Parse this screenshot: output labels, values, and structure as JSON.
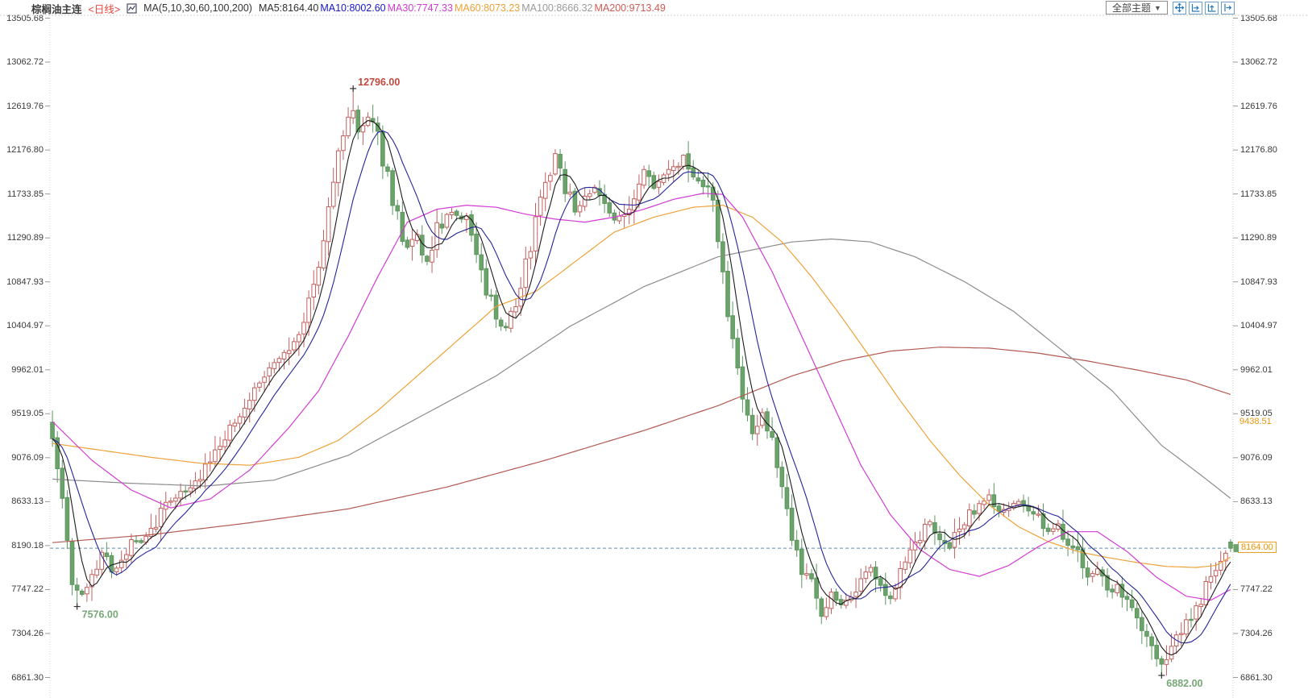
{
  "header": {
    "symbol": "棕榈油主连",
    "period": "<日线>",
    "ma_label": "MA(5,10,30,60,100,200)",
    "ma_values": [
      {
        "text": "MA5:8164.40",
        "color": "#2e2e2e"
      },
      {
        "text": "MA10:8002.60",
        "color": "#1717c8"
      },
      {
        "text": "MA30:7747.33",
        "color": "#d23cd2"
      },
      {
        "text": "MA60:8073.23",
        "color": "#eda23a"
      },
      {
        "text": "MA100:8666.32",
        "color": "#9a9a9a"
      },
      {
        "text": "MA200:9713.49",
        "color": "#d05a52"
      }
    ]
  },
  "toolbar": {
    "theme_label": "全部主题",
    "caret": "▼",
    "icons": [
      "pan-icon",
      "zoom-x-axis-icon",
      "zoom-y-axis-icon",
      "reset-view-icon"
    ]
  },
  "axis": {
    "price_tags": [
      {
        "text": "9438.51",
        "price": 9438.51,
        "boxed": false
      },
      {
        "text": "8164.00",
        "price": 8164.0,
        "boxed": true
      }
    ]
  },
  "chart_data": {
    "type": "candlestick",
    "title": "棕榈油主连 日线",
    "n_candles": 240,
    "price_at_top": 13505.68,
    "price_at_bottom": 6861.3,
    "y_ticks": [
      "13505.68",
      "13062.72",
      "12619.76",
      "12176.80",
      "11733.85",
      "11290.89",
      "10847.93",
      "10404.97",
      "9962.01",
      "9519.05",
      "9076.09",
      "8633.13",
      "8190.18",
      "7747.22",
      "7304.26",
      "6861.30"
    ],
    "close_keypoints": [
      [
        0,
        9300
      ],
      [
        1,
        8950
      ],
      [
        3,
        8250
      ],
      [
        4,
        7750
      ],
      [
        6,
        7680
      ],
      [
        8,
        7850
      ],
      [
        10,
        8150
      ],
      [
        12,
        7950
      ],
      [
        14,
        8000
      ],
      [
        16,
        8250
      ],
      [
        18,
        8200
      ],
      [
        20,
        8350
      ],
      [
        23,
        8600
      ],
      [
        26,
        8700
      ],
      [
        29,
        8850
      ],
      [
        32,
        9050
      ],
      [
        35,
        9300
      ],
      [
        38,
        9550
      ],
      [
        41,
        9800
      ],
      [
        44,
        9950
      ],
      [
        47,
        10100
      ],
      [
        50,
        10350
      ],
      [
        53,
        10800
      ],
      [
        55,
        11300
      ],
      [
        57,
        11900
      ],
      [
        59,
        12300
      ],
      [
        61,
        12550
      ],
      [
        62,
        12350
      ],
      [
        64,
        12500
      ],
      [
        66,
        12300
      ],
      [
        68,
        11900
      ],
      [
        70,
        11500
      ],
      [
        72,
        11150
      ],
      [
        74,
        11350
      ],
      [
        76,
        11050
      ],
      [
        78,
        11400
      ],
      [
        80,
        11550
      ],
      [
        82,
        11500
      ],
      [
        84,
        11450
      ],
      [
        86,
        11100
      ],
      [
        88,
        10750
      ],
      [
        90,
        10500
      ],
      [
        92,
        10350
      ],
      [
        94,
        10650
      ],
      [
        96,
        11000
      ],
      [
        98,
        11450
      ],
      [
        100,
        11850
      ],
      [
        102,
        12150
      ],
      [
        104,
        11800
      ],
      [
        106,
        11580
      ],
      [
        108,
        11700
      ],
      [
        110,
        11800
      ],
      [
        112,
        11650
      ],
      [
        114,
        11480
      ],
      [
        116,
        11550
      ],
      [
        118,
        11750
      ],
      [
        120,
        11950
      ],
      [
        122,
        11800
      ],
      [
        124,
        11880
      ],
      [
        126,
        12000
      ],
      [
        128,
        12150
      ],
      [
        130,
        11950
      ],
      [
        132,
        11880
      ],
      [
        134,
        11600
      ],
      [
        136,
        10900
      ],
      [
        138,
        10200
      ],
      [
        140,
        9700
      ],
      [
        142,
        9350
      ],
      [
        144,
        9550
      ],
      [
        146,
        9250
      ],
      [
        148,
        8800
      ],
      [
        150,
        8250
      ],
      [
        152,
        7950
      ],
      [
        154,
        7850
      ],
      [
        156,
        7500
      ],
      [
        158,
        7700
      ],
      [
        160,
        7580
      ],
      [
        162,
        7650
      ],
      [
        164,
        7900
      ],
      [
        166,
        7950
      ],
      [
        168,
        7780
      ],
      [
        170,
        7650
      ],
      [
        172,
        7900
      ],
      [
        174,
        8100
      ],
      [
        176,
        8300
      ],
      [
        178,
        8420
      ],
      [
        180,
        8300
      ],
      [
        182,
        8180
      ],
      [
        184,
        8350
      ],
      [
        186,
        8500
      ],
      [
        188,
        8620
      ],
      [
        190,
        8680
      ],
      [
        192,
        8520
      ],
      [
        194,
        8580
      ],
      [
        196,
        8620
      ],
      [
        198,
        8550
      ],
      [
        200,
        8460
      ],
      [
        202,
        8320
      ],
      [
        204,
        8380
      ],
      [
        206,
        8220
      ],
      [
        208,
        8120
      ],
      [
        210,
        7880
      ],
      [
        212,
        7950
      ],
      [
        214,
        7720
      ],
      [
        216,
        7780
      ],
      [
        218,
        7620
      ],
      [
        220,
        7500
      ],
      [
        222,
        7250
      ],
      [
        224,
        7080
      ],
      [
        225,
        6990
      ],
      [
        227,
        7150
      ],
      [
        229,
        7350
      ],
      [
        231,
        7480
      ],
      [
        233,
        7650
      ],
      [
        235,
        7900
      ],
      [
        237,
        8050
      ],
      [
        239,
        8164
      ]
    ],
    "computed_ma": [
      {
        "name": "MA5",
        "window": 5,
        "color": "#1c1c1c",
        "last_value": 8164.4
      },
      {
        "name": "MA10",
        "window": 10,
        "color": "#24249a",
        "last_value": 8002.6
      }
    ],
    "ma_overlays": [
      {
        "name": "MA200",
        "color": "#b25a52",
        "last_value": 9713.49,
        "keypoints": [
          [
            0,
            8220
          ],
          [
            20,
            8300
          ],
          [
            40,
            8420
          ],
          [
            60,
            8560
          ],
          [
            80,
            8780
          ],
          [
            100,
            9050
          ],
          [
            120,
            9350
          ],
          [
            135,
            9600
          ],
          [
            150,
            9900
          ],
          [
            160,
            10050
          ],
          [
            170,
            10150
          ],
          [
            180,
            10190
          ],
          [
            190,
            10180
          ],
          [
            200,
            10130
          ],
          [
            210,
            10050
          ],
          [
            220,
            9960
          ],
          [
            230,
            9860
          ],
          [
            239,
            9713.49
          ]
        ]
      },
      {
        "name": "MA100",
        "color": "#8c8c8c",
        "last_value": 8666.32,
        "keypoints": [
          [
            0,
            8860
          ],
          [
            15,
            8820
          ],
          [
            31,
            8790
          ],
          [
            45,
            8850
          ],
          [
            60,
            9100
          ],
          [
            75,
            9500
          ],
          [
            90,
            9900
          ],
          [
            105,
            10400
          ],
          [
            120,
            10800
          ],
          [
            135,
            11100
          ],
          [
            150,
            11250
          ],
          [
            158,
            11280
          ],
          [
            166,
            11250
          ],
          [
            175,
            11100
          ],
          [
            185,
            10850
          ],
          [
            195,
            10550
          ],
          [
            205,
            10150
          ],
          [
            215,
            9750
          ],
          [
            225,
            9200
          ],
          [
            233,
            8900
          ],
          [
            239,
            8666.32
          ]
        ]
      },
      {
        "name": "MA60",
        "color": "#eda23a",
        "last_value": 8073.23,
        "keypoints": [
          [
            0,
            9220
          ],
          [
            10,
            9150
          ],
          [
            20,
            9080
          ],
          [
            30,
            9020
          ],
          [
            40,
            9000
          ],
          [
            50,
            9080
          ],
          [
            58,
            9250
          ],
          [
            66,
            9550
          ],
          [
            74,
            9900
          ],
          [
            82,
            10250
          ],
          [
            90,
            10600
          ],
          [
            98,
            10750
          ],
          [
            106,
            11050
          ],
          [
            114,
            11350
          ],
          [
            122,
            11500
          ],
          [
            130,
            11600
          ],
          [
            136,
            11620
          ],
          [
            142,
            11500
          ],
          [
            148,
            11250
          ],
          [
            154,
            10900
          ],
          [
            160,
            10500
          ],
          [
            166,
            10080
          ],
          [
            172,
            9650
          ],
          [
            178,
            9250
          ],
          [
            184,
            8900
          ],
          [
            190,
            8600
          ],
          [
            196,
            8380
          ],
          [
            202,
            8230
          ],
          [
            208,
            8130
          ],
          [
            214,
            8070
          ],
          [
            220,
            8020
          ],
          [
            226,
            7980
          ],
          [
            232,
            7970
          ],
          [
            236,
            7990
          ],
          [
            239,
            8073.23
          ]
        ]
      },
      {
        "name": "MA30",
        "color": "#d23cd2",
        "last_value": 7747.33,
        "keypoints": [
          [
            0,
            9440
          ],
          [
            8,
            9050
          ],
          [
            16,
            8750
          ],
          [
            24,
            8570
          ],
          [
            32,
            8660
          ],
          [
            40,
            8950
          ],
          [
            48,
            9380
          ],
          [
            54,
            9750
          ],
          [
            60,
            10300
          ],
          [
            66,
            10900
          ],
          [
            72,
            11450
          ],
          [
            78,
            11580
          ],
          [
            84,
            11620
          ],
          [
            90,
            11600
          ],
          [
            96,
            11530
          ],
          [
            102,
            11480
          ],
          [
            108,
            11450
          ],
          [
            114,
            11500
          ],
          [
            120,
            11580
          ],
          [
            126,
            11680
          ],
          [
            132,
            11740
          ],
          [
            136,
            11730
          ],
          [
            140,
            11500
          ],
          [
            146,
            10950
          ],
          [
            152,
            10300
          ],
          [
            158,
            9650
          ],
          [
            164,
            9000
          ],
          [
            170,
            8500
          ],
          [
            176,
            8150
          ],
          [
            182,
            7950
          ],
          [
            188,
            7880
          ],
          [
            194,
            7990
          ],
          [
            200,
            8180
          ],
          [
            206,
            8330
          ],
          [
            212,
            8330
          ],
          [
            218,
            8130
          ],
          [
            224,
            7870
          ],
          [
            230,
            7680
          ],
          [
            235,
            7640
          ],
          [
            239,
            7747.33
          ]
        ]
      }
    ],
    "annotations": [
      {
        "kind": "high",
        "index": 61,
        "price": 12796.0,
        "label": "12796.00",
        "color": "#c2483e"
      },
      {
        "kind": "low",
        "index": 5,
        "price": 7576.0,
        "label": "7576.00",
        "color": "#76a876"
      },
      {
        "kind": "low",
        "index": 225,
        "price": 6882.0,
        "label": "6882.00",
        "color": "#76a876"
      }
    ],
    "current_price": {
      "value": 8164.0,
      "label": "8164.00",
      "line_color": "#5c8cab"
    },
    "colors": {
      "up": "#c2605e",
      "up_fill": "#ffffff",
      "down": "#5d965f",
      "down_fill": "#6ba36b"
    },
    "legend_position": "top-left",
    "grid": false
  }
}
